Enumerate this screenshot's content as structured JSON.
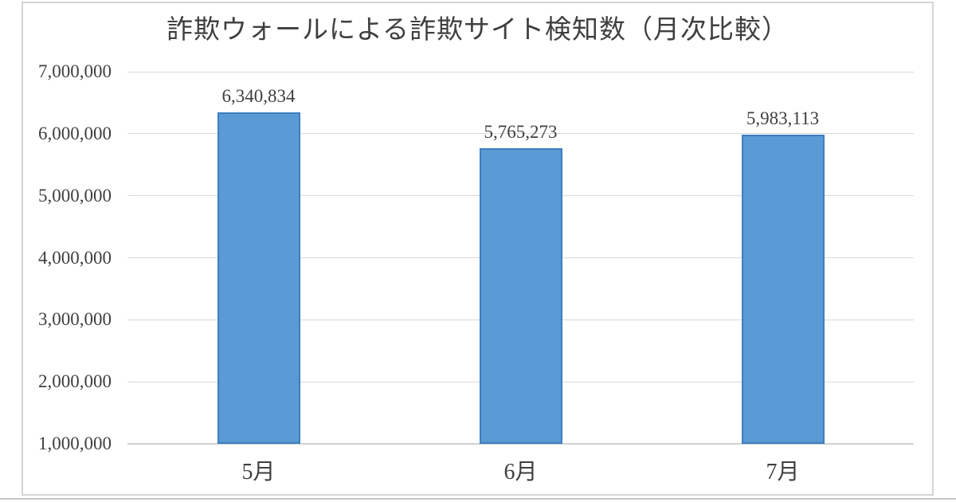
{
  "chart_data": {
    "type": "bar",
    "title": "詐欺ウォールによる詐欺サイト検知数（月次比較）",
    "categories": [
      "5月",
      "6月",
      "7月"
    ],
    "values": [
      6340834,
      5765273,
      5983113
    ],
    "value_labels": [
      "6,340,834",
      "5,765,273",
      "5,983,113"
    ],
    "xlabel": "",
    "ylabel": "",
    "ylim": [
      1000000,
      7000000
    ],
    "y_ticks": [
      1000000,
      2000000,
      3000000,
      4000000,
      5000000,
      6000000,
      7000000
    ],
    "y_tick_labels": [
      "1,000,000",
      "2,000,000",
      "3,000,000",
      "4,000,000",
      "5,000,000",
      "6,000,000",
      "7,000,000"
    ],
    "grid": "horizontal",
    "legend": "none",
    "colors": {
      "bar_fill": "#5B9BD5",
      "bar_border": "#3D7EBF",
      "gridline": "#D9D9D9",
      "axis_line": "#D0D0D0",
      "text": "#3F3F3F",
      "frame_border": "#D4D4D4"
    }
  }
}
